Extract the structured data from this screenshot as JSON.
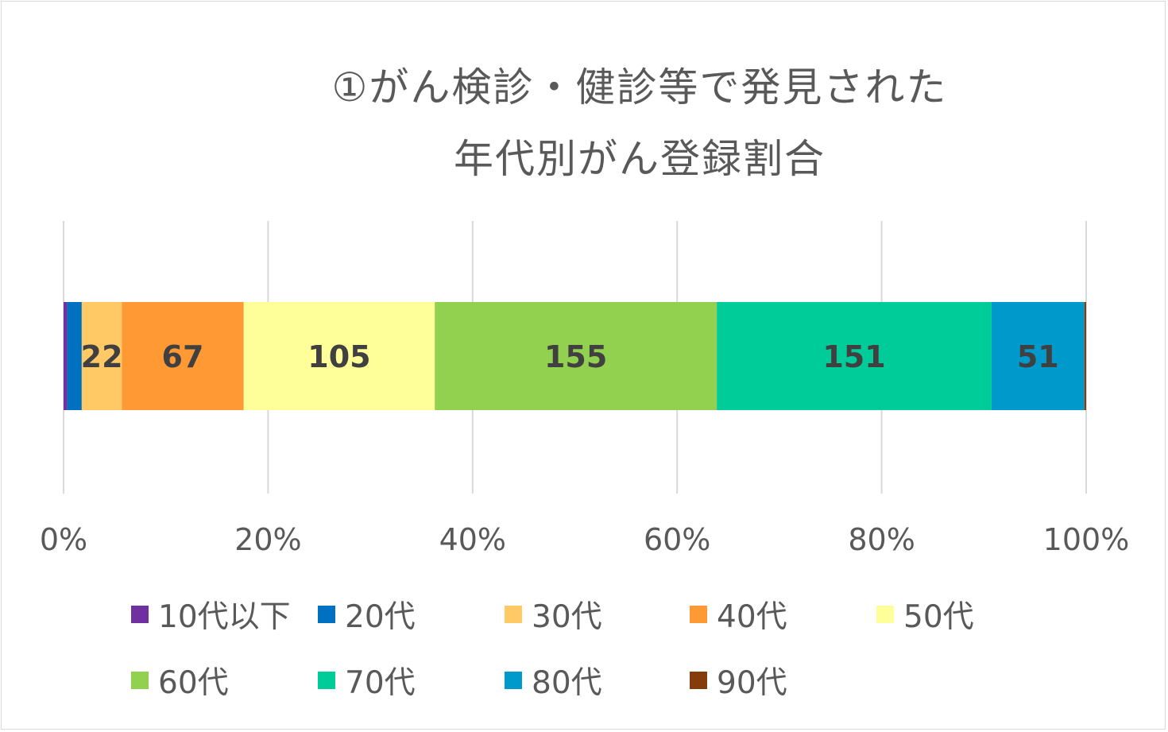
{
  "chart_data": {
    "type": "bar",
    "orientation": "horizontal",
    "stacked": "percent",
    "title_lines": [
      "①がん検診・健診等で発見された",
      "年代別がん登録割合"
    ],
    "x_ticks": [
      "0%",
      "20%",
      "40%",
      "60%",
      "80%",
      "100%"
    ],
    "xlim": [
      0,
      100
    ],
    "grid": true,
    "legend_position": "bottom",
    "series": [
      {
        "name": "10代以下",
        "value": 2,
        "label": "",
        "color": "#7030a0"
      },
      {
        "name": "20代",
        "value": 8,
        "label": "",
        "color": "#0070c0"
      },
      {
        "name": "30代",
        "value": 22,
        "label": "22",
        "color": "#ffc966"
      },
      {
        "name": "40代",
        "value": 67,
        "label": "67",
        "color": "#ff9933"
      },
      {
        "name": "50代",
        "value": 105,
        "label": "105",
        "color": "#ffff99"
      },
      {
        "name": "60代",
        "value": 155,
        "label": "155",
        "color": "#92d050"
      },
      {
        "name": "70代",
        "value": 151,
        "label": "151",
        "color": "#00cc99"
      },
      {
        "name": "80代",
        "value": 51,
        "label": "51",
        "color": "#0099cc"
      },
      {
        "name": "90代",
        "value": 1,
        "label": "",
        "color": "#843c0c"
      }
    ]
  }
}
